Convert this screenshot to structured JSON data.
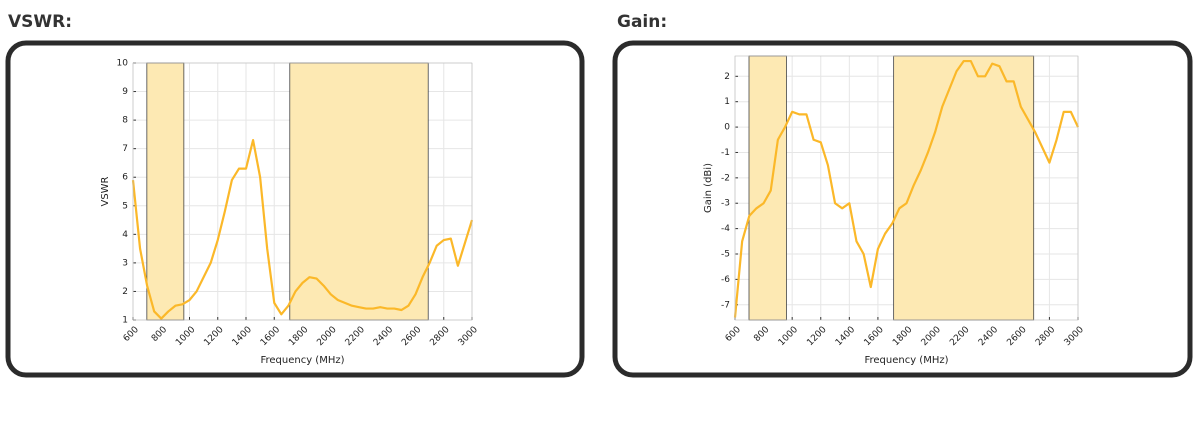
{
  "chart_data": [
    {
      "type": "line",
      "title": "VSWR:",
      "x_label": "Frequency (MHz)",
      "y_label": "VSWR",
      "x": [
        600,
        650,
        700,
        750,
        800,
        850,
        900,
        950,
        1000,
        1050,
        1100,
        1150,
        1200,
        1250,
        1300,
        1350,
        1400,
        1450,
        1500,
        1550,
        1600,
        1650,
        1700,
        1750,
        1800,
        1850,
        1900,
        1950,
        2000,
        2050,
        2100,
        2150,
        2200,
        2250,
        2300,
        2350,
        2400,
        2450,
        2500,
        2550,
        2600,
        2650,
        2700,
        2750,
        2800,
        2850,
        2900,
        2950,
        3000
      ],
      "series": [
        {
          "color": "#fbb829",
          "values": [
            5.9,
            3.5,
            2.2,
            1.3,
            1.05,
            1.3,
            1.5,
            1.55,
            1.7,
            2.0,
            2.5,
            3.0,
            3.8,
            4.8,
            5.9,
            6.3,
            6.3,
            7.3,
            6.0,
            3.5,
            1.6,
            1.2,
            1.5,
            2.0,
            2.3,
            2.5,
            2.45,
            2.2,
            1.9,
            1.7,
            1.6,
            1.5,
            1.45,
            1.4,
            1.4,
            1.45,
            1.4,
            1.4,
            1.35,
            1.5,
            1.9,
            2.5,
            3.0,
            3.6,
            3.8,
            3.85,
            2.9,
            3.7,
            4.5
          ]
        }
      ],
      "bands": [
        [
          698,
          960
        ],
        [
          1710,
          2690
        ]
      ],
      "band_color": "#fde9b3",
      "xlim": [
        600,
        3000
      ],
      "xticks": [
        600,
        800,
        1000,
        1200,
        1400,
        1600,
        1800,
        2000,
        2200,
        2400,
        2600,
        2800,
        3000
      ],
      "ylim": [
        1,
        10
      ],
      "yticks": [
        1,
        2,
        3,
        4,
        5,
        6,
        7,
        8,
        9,
        10
      ],
      "grid": true
    },
    {
      "type": "line",
      "title": "Gain:",
      "x_label": "Frequency (MHz)",
      "y_label": "Gain (dBi)",
      "x": [
        600,
        650,
        700,
        750,
        800,
        850,
        900,
        950,
        1000,
        1050,
        1100,
        1150,
        1200,
        1250,
        1300,
        1350,
        1400,
        1450,
        1500,
        1550,
        1600,
        1650,
        1700,
        1750,
        1800,
        1850,
        1900,
        1950,
        2000,
        2050,
        2100,
        2150,
        2200,
        2250,
        2300,
        2350,
        2400,
        2450,
        2500,
        2550,
        2600,
        2650,
        2700,
        2750,
        2800,
        2850,
        2900,
        2950,
        3000
      ],
      "series": [
        {
          "color": "#fbb829",
          "values": [
            -7.5,
            -4.5,
            -3.5,
            -3.2,
            -3.0,
            -2.5,
            -0.5,
            0.0,
            0.6,
            0.5,
            0.5,
            -0.5,
            -0.6,
            -1.5,
            -3.0,
            -3.2,
            -3.0,
            -4.5,
            -5.0,
            -6.3,
            -4.8,
            -4.2,
            -3.8,
            -3.2,
            -3.0,
            -2.3,
            -1.7,
            -1.0,
            -0.2,
            0.8,
            1.5,
            2.2,
            2.6,
            2.6,
            2.0,
            2.0,
            2.5,
            2.4,
            1.8,
            1.8,
            0.8,
            0.3,
            -0.2,
            -0.8,
            -1.4,
            -0.5,
            0.6,
            0.6,
            0.0
          ]
        }
      ],
      "bands": [
        [
          698,
          960
        ],
        [
          1710,
          2690
        ]
      ],
      "band_color": "#fde9b3",
      "xlim": [
        600,
        3000
      ],
      "xticks": [
        600,
        800,
        1000,
        1200,
        1400,
        1600,
        1800,
        2000,
        2200,
        2400,
        2600,
        2800,
        3000
      ],
      "ylim": [
        -7.6,
        2.8
      ],
      "yticks": [
        -7,
        -6,
        -5,
        -4,
        -3,
        -2,
        -1,
        0,
        1,
        2
      ],
      "grid": true
    }
  ]
}
